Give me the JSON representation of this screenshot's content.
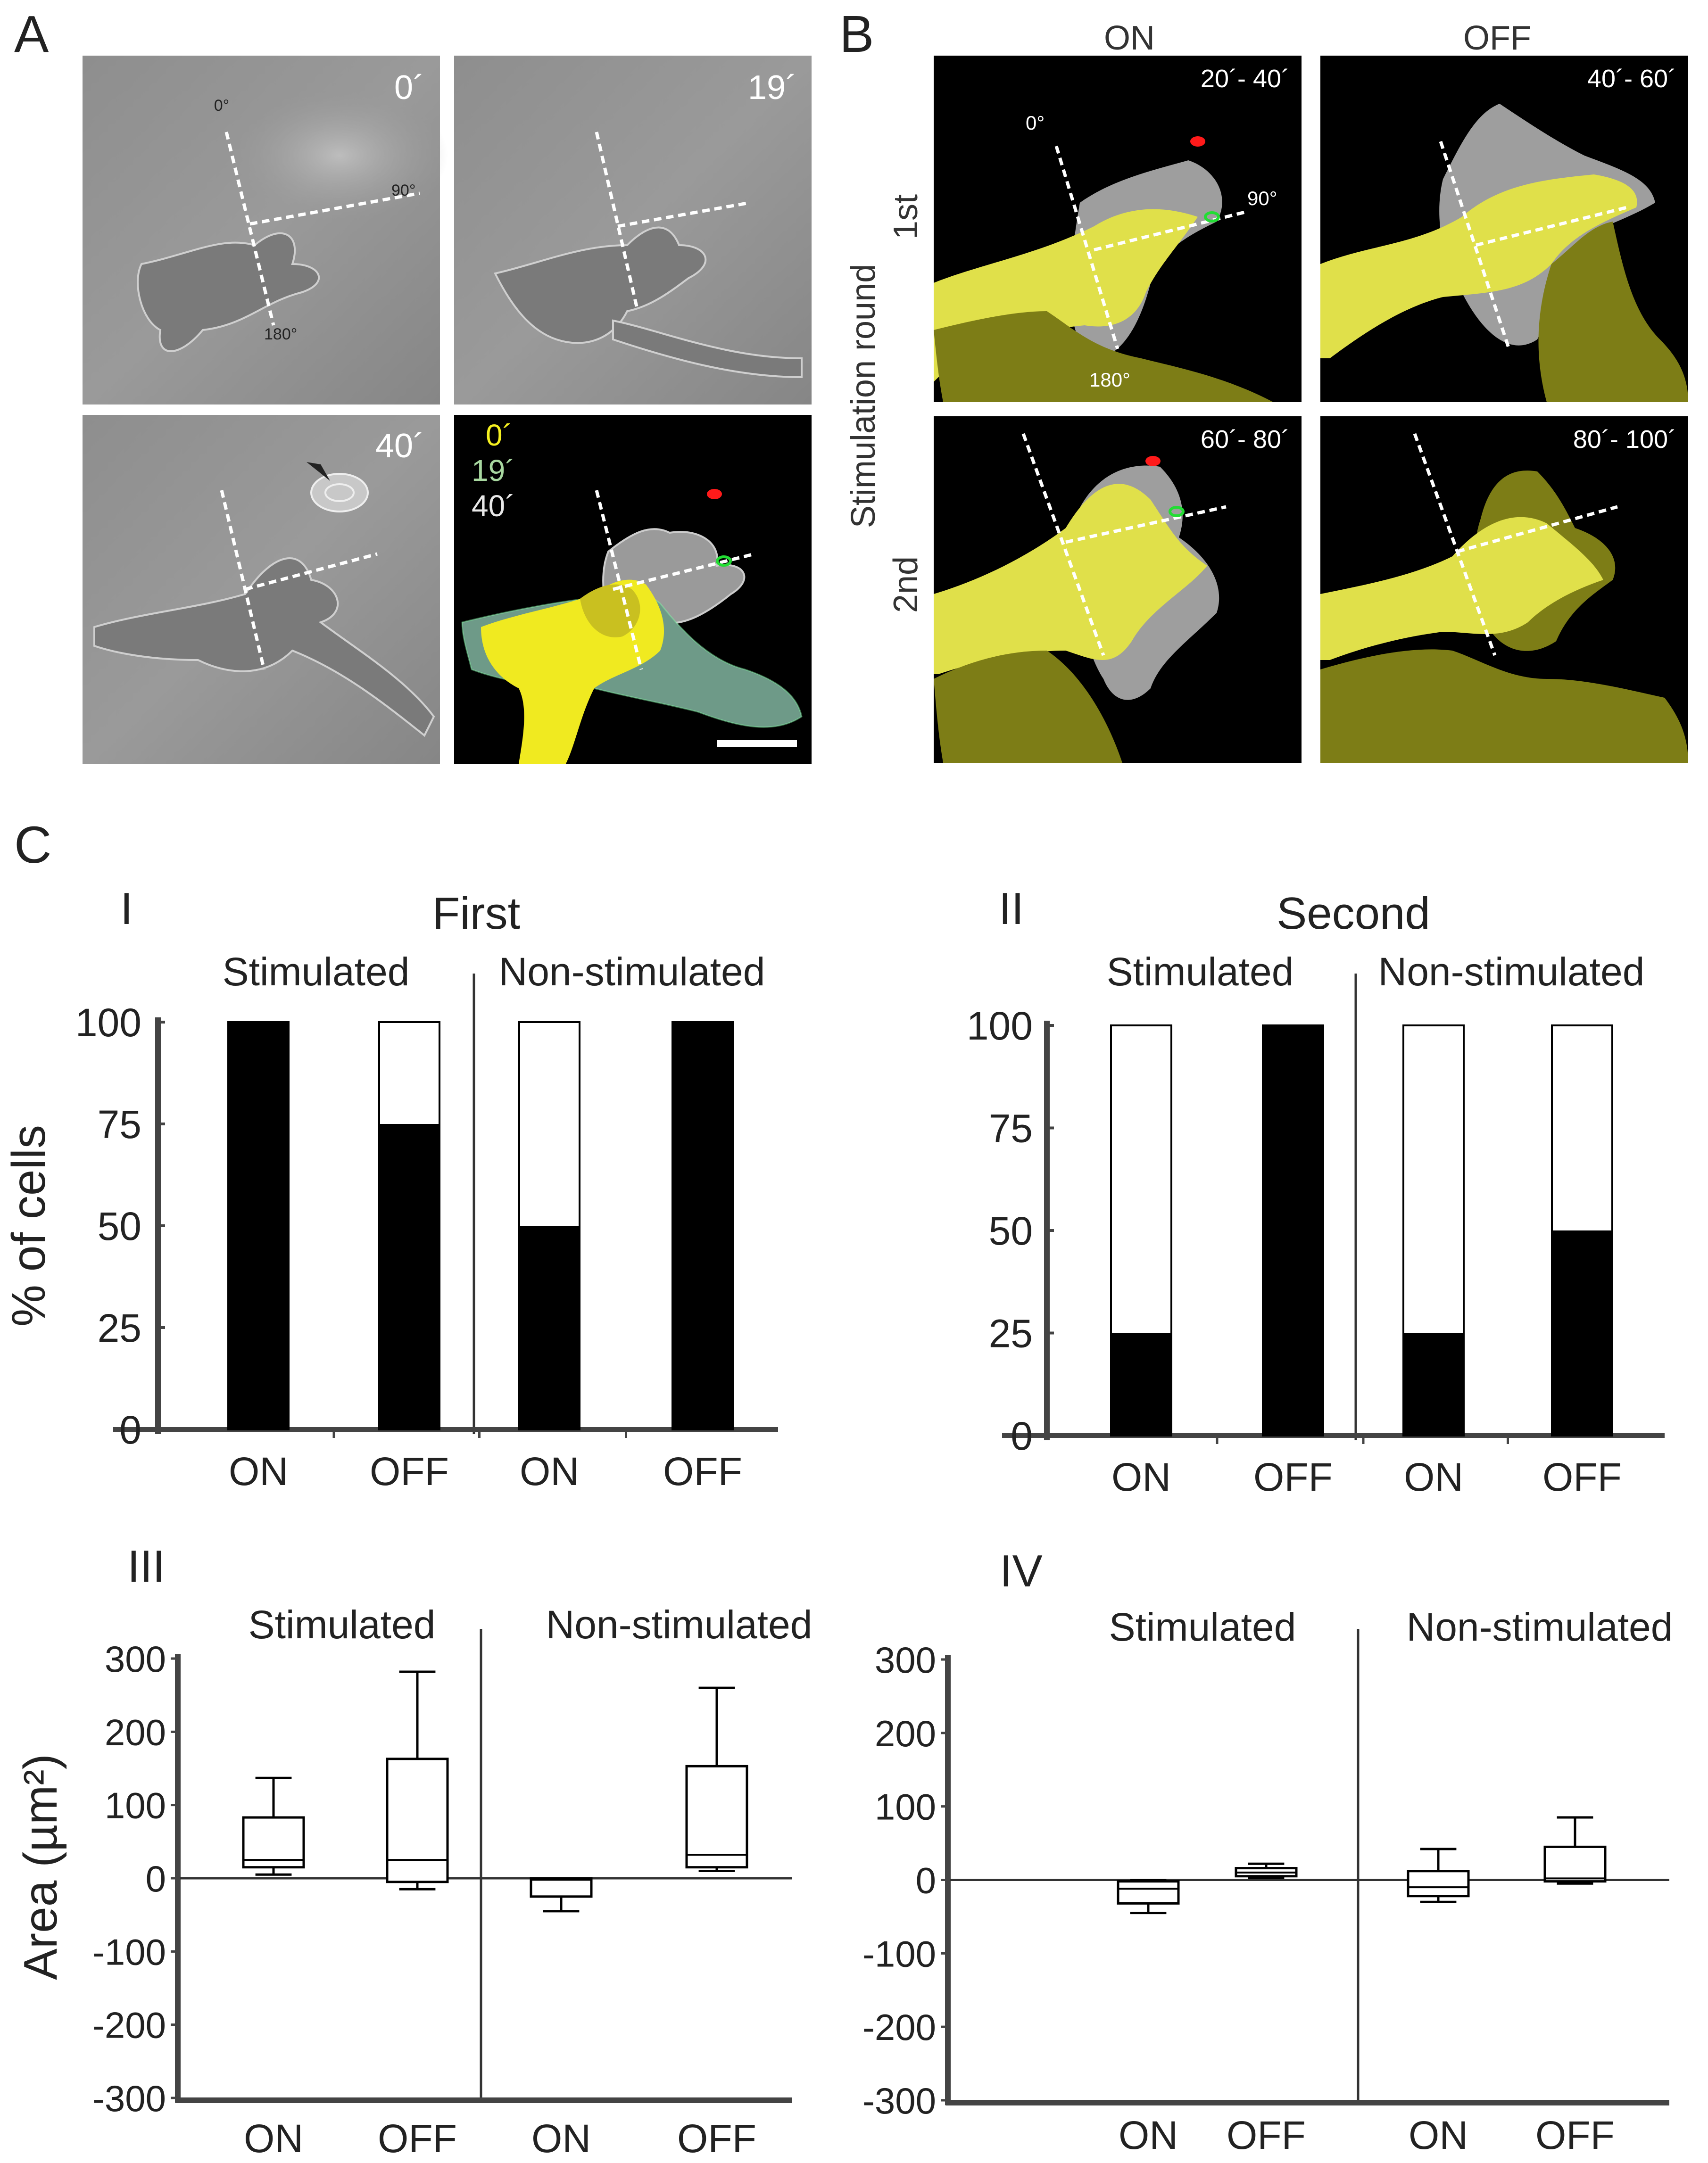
{
  "panel_letters": {
    "a": "A",
    "b": "B",
    "c": "C"
  },
  "panel_a": {
    "times": [
      "0´",
      "19´",
      "40´"
    ],
    "angles": [
      "0°",
      "90°",
      "180°"
    ],
    "legend": [
      "0´",
      "19´",
      "40´"
    ],
    "colors": {
      "t0": "#f5f020",
      "t19": "#6e9a88",
      "t40": "#9a9a9a",
      "stim": "#ff1a1a",
      "pipette": "#22dd33"
    }
  },
  "panel_b": {
    "col_labels": [
      "ON",
      "OFF"
    ],
    "row_axis_label": "Stimulation round",
    "row_labels": [
      "1st",
      "2nd"
    ],
    "windows": [
      "20´- 40´",
      "40´- 60´",
      "60´- 80´",
      "80´- 100´"
    ],
    "angles": [
      "0°",
      "90°",
      "180°"
    ],
    "colors": {
      "bright": "#e0e04a",
      "dark": "#7d7d16",
      "gray": "#9e9e9e"
    }
  },
  "chart_data": [
    {
      "type": "bar",
      "panel": "I",
      "title": "First",
      "group_labels": [
        "Stimulated",
        "Non-stimulated"
      ],
      "categories": [
        "ON",
        "OFF",
        "ON",
        "OFF"
      ],
      "ylabel": "% of cells",
      "ylim": [
        0,
        100
      ],
      "yticks": [
        "0",
        "25",
        "50",
        "75",
        "100"
      ],
      "series": [
        {
          "values": [
            100,
            75,
            50,
            100
          ]
        }
      ],
      "colors": {
        "fill": "#000000",
        "remainder": "#ffffff"
      }
    },
    {
      "type": "bar",
      "panel": "II",
      "title": "Second",
      "group_labels": [
        "Stimulated",
        "Non-stimulated"
      ],
      "categories": [
        "ON",
        "OFF",
        "ON",
        "OFF"
      ],
      "ylabel": "",
      "ylim": [
        0,
        100
      ],
      "yticks": [
        "0",
        "25",
        "50",
        "75",
        "100"
      ],
      "series": [
        {
          "values": [
            25,
            100,
            25,
            50
          ]
        }
      ],
      "colors": {
        "fill": "#000000",
        "remainder": "#ffffff"
      }
    },
    {
      "type": "box",
      "panel": "III",
      "group_labels": [
        "Stimulated",
        "Non-stimulated"
      ],
      "categories": [
        "ON",
        "OFF",
        "ON",
        "OFF"
      ],
      "ylabel": "Area (µm²)",
      "ylim": [
        -300,
        300
      ],
      "yticks": [
        "300",
        "200",
        "100",
        "0",
        "-100",
        "-200",
        "-300"
      ],
      "boxes": [
        {
          "min": 5,
          "q1": 15,
          "median": 25,
          "q3": 83,
          "max": 137
        },
        {
          "min": -15,
          "q1": -5,
          "median": 25,
          "q3": 163,
          "max": 282
        },
        {
          "min": -45,
          "q1": -25,
          "median": -2,
          "q3": 0,
          "max": 0
        },
        {
          "min": 10,
          "q1": 15,
          "median": 32,
          "q3": 153,
          "max": 260
        }
      ]
    },
    {
      "type": "box",
      "panel": "IV",
      "group_labels": [
        "Stimulated",
        "Non-stimulated"
      ],
      "categories": [
        "ON",
        "OFF",
        "ON",
        "OFF"
      ],
      "ylabel": "",
      "ylim": [
        -300,
        300
      ],
      "yticks": [
        "300",
        "200",
        "100",
        "0",
        "-100",
        "-200",
        "-300"
      ],
      "boxes": [
        {
          "min": -45,
          "q1": -32,
          "median": -12,
          "q3": -2,
          "max": 0
        },
        {
          "min": 3,
          "q1": 5,
          "median": 10,
          "q3": 16,
          "max": 22
        },
        {
          "min": -30,
          "q1": -22,
          "median": -10,
          "q3": 12,
          "max": 42
        },
        {
          "min": -5,
          "q1": -2,
          "median": 2,
          "q3": 45,
          "max": 85
        }
      ]
    }
  ]
}
